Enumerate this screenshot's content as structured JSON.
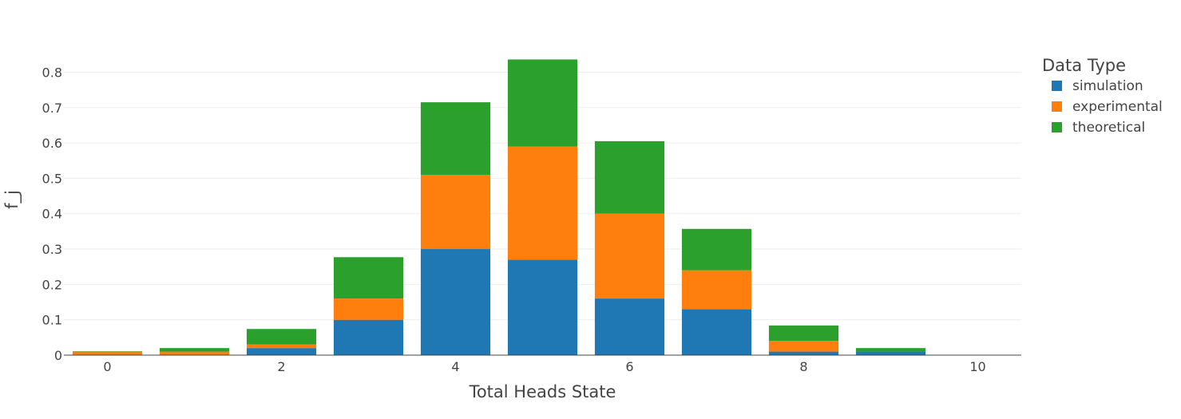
{
  "chart_data": {
    "type": "bar",
    "barmode": "stack",
    "x": [
      0,
      1,
      2,
      3,
      4,
      5,
      6,
      7,
      8,
      9,
      10
    ],
    "series": [
      {
        "name": "simulation",
        "color": "#1f77b4",
        "values": [
          0,
          0,
          0.02,
          0.1,
          0.3,
          0.27,
          0.16,
          0.13,
          0.01,
          0.01,
          0
        ]
      },
      {
        "name": "experimental",
        "color": "#ff7f0e",
        "values": [
          0.01,
          0.01,
          0.01,
          0.06,
          0.21,
          0.32,
          0.24,
          0.11,
          0.03,
          0,
          0
        ]
      },
      {
        "name": "theoretical",
        "color": "#2ca02c",
        "values": [
          0.001,
          0.01,
          0.044,
          0.117,
          0.205,
          0.246,
          0.205,
          0.117,
          0.044,
          0.01,
          0.001
        ]
      }
    ],
    "xlabel": "Total Heads State",
    "ylabel": "f_j",
    "xticks": [
      0,
      2,
      4,
      6,
      8,
      10
    ],
    "yticks": [
      0,
      0.1,
      0.2,
      0.3,
      0.4,
      0.5,
      0.6,
      0.7,
      0.8
    ],
    "xlim": [
      -0.5,
      10.5
    ],
    "ylim": [
      0,
      0.88
    ],
    "grid": true,
    "legend": {
      "title": "Data Type",
      "position": "right"
    }
  }
}
